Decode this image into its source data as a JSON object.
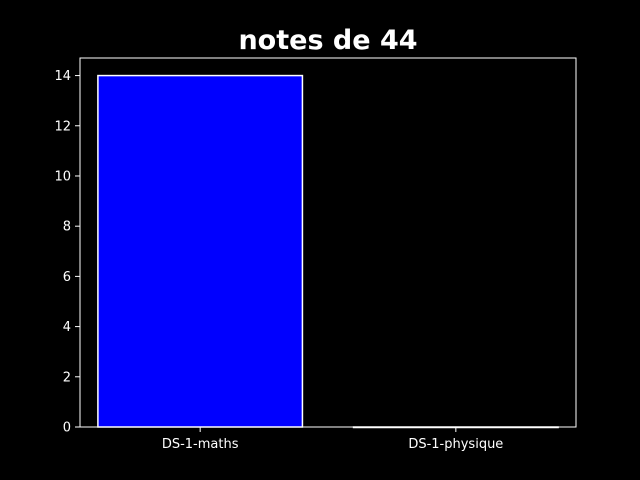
{
  "chart_data": {
    "type": "bar",
    "title": "notes de 44",
    "categories": [
      "DS-1-maths",
      "DS-1-physique"
    ],
    "values": [
      14,
      0
    ],
    "xlabel": "",
    "ylabel": "",
    "ylim": [
      0,
      14.7
    ],
    "yticks": [
      0,
      2,
      4,
      6,
      8,
      10,
      12,
      14
    ],
    "grid": false,
    "legend": "none",
    "colors": {
      "background": "#000000",
      "bar_fill": "#0000ff",
      "bar_edge": "#ffffff",
      "axes": "#ffffff",
      "text": "#ffffff"
    }
  }
}
